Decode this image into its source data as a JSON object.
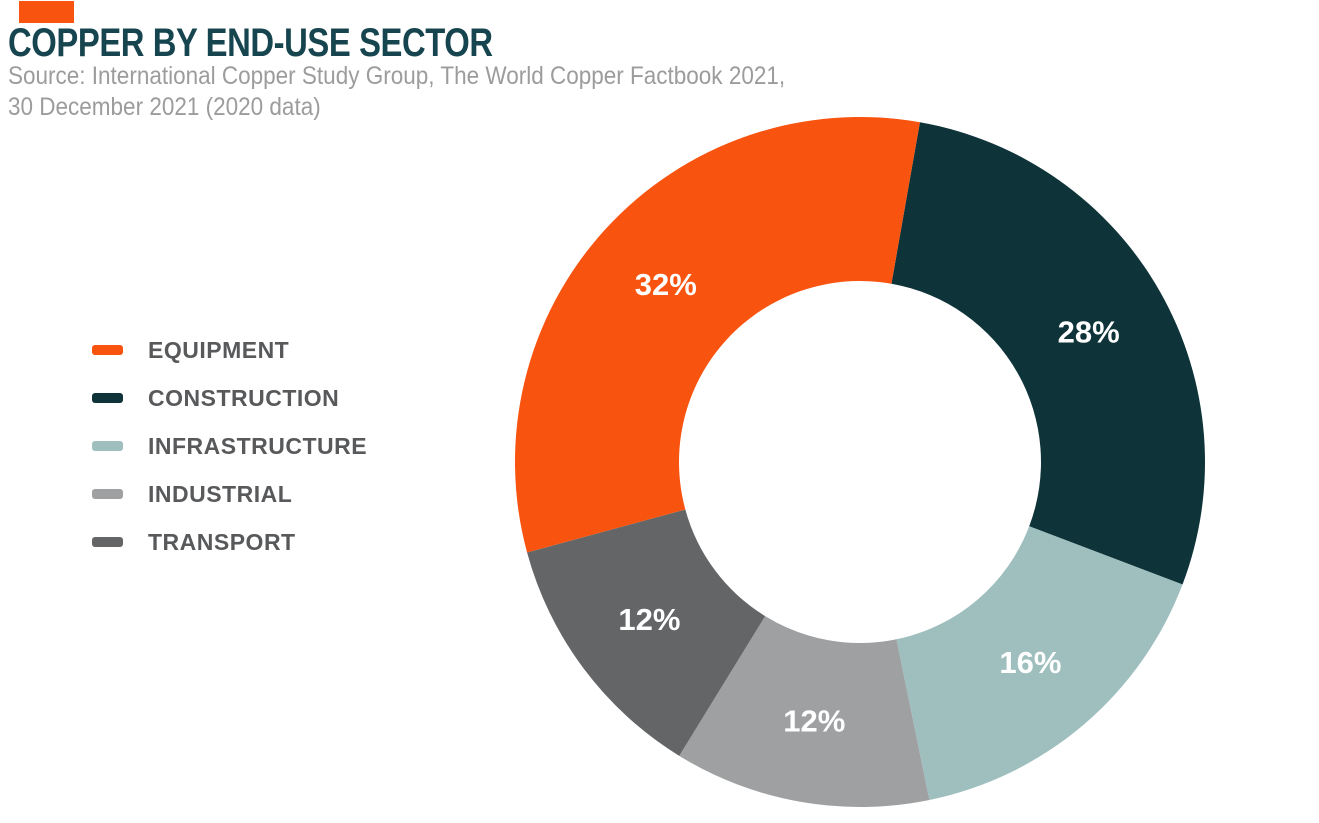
{
  "header": {
    "title": "COPPER BY END-USE SECTOR",
    "source_line1": "Source: International Copper Study Group, The World Copper Factbook 2021,",
    "source_line2": "30 December 2021 (2020 data)",
    "brand_mark_color": "#F8530F"
  },
  "colors": {
    "background": "#FFFFFF",
    "title_text": "#17454F",
    "source_text": "#9C9C9C",
    "legend_text": "#58595B",
    "slice_label_text": "#FFFFFF"
  },
  "legend": {
    "position": "left",
    "items": [
      {
        "label": "EQUIPMENT",
        "color": "#F8530F"
      },
      {
        "label": "CONSTRUCTION",
        "color": "#0E343A"
      },
      {
        "label": "INFRASTRUCTURE",
        "color": "#9FBFBF"
      },
      {
        "label": "INDUSTRIAL",
        "color": "#9EA0A2"
      },
      {
        "label": "TRANSPORT",
        "color": "#636567"
      }
    ]
  },
  "chart_data": {
    "type": "pie",
    "subtype": "donut",
    "title": "COPPER BY END-USE SECTOR",
    "categories": [
      "EQUIPMENT",
      "CONSTRUCTION",
      "INFRASTRUCTURE",
      "INDUSTRIAL",
      "TRANSPORT"
    ],
    "values": [
      32,
      28,
      16,
      12,
      12
    ],
    "unit": "%",
    "legend_position": "left",
    "grid": false,
    "start_angle_deg": 10,
    "clockwise": true,
    "inner_radius_ratio": 0.525,
    "slices": [
      {
        "label": "CONSTRUCTION",
        "value": 28,
        "pct_label": "28%",
        "color": "#0E343A"
      },
      {
        "label": "INFRASTRUCTURE",
        "value": 16,
        "pct_label": "16%",
        "color": "#9FBFBF"
      },
      {
        "label": "INDUSTRIAL",
        "value": 12,
        "pct_label": "12%",
        "color": "#9EA0A2"
      },
      {
        "label": "TRANSPORT",
        "value": 12,
        "pct_label": "12%",
        "color": "#636567"
      },
      {
        "label": "EQUIPMENT",
        "value": 32,
        "pct_label": "32%",
        "color": "#F8530F"
      }
    ]
  }
}
